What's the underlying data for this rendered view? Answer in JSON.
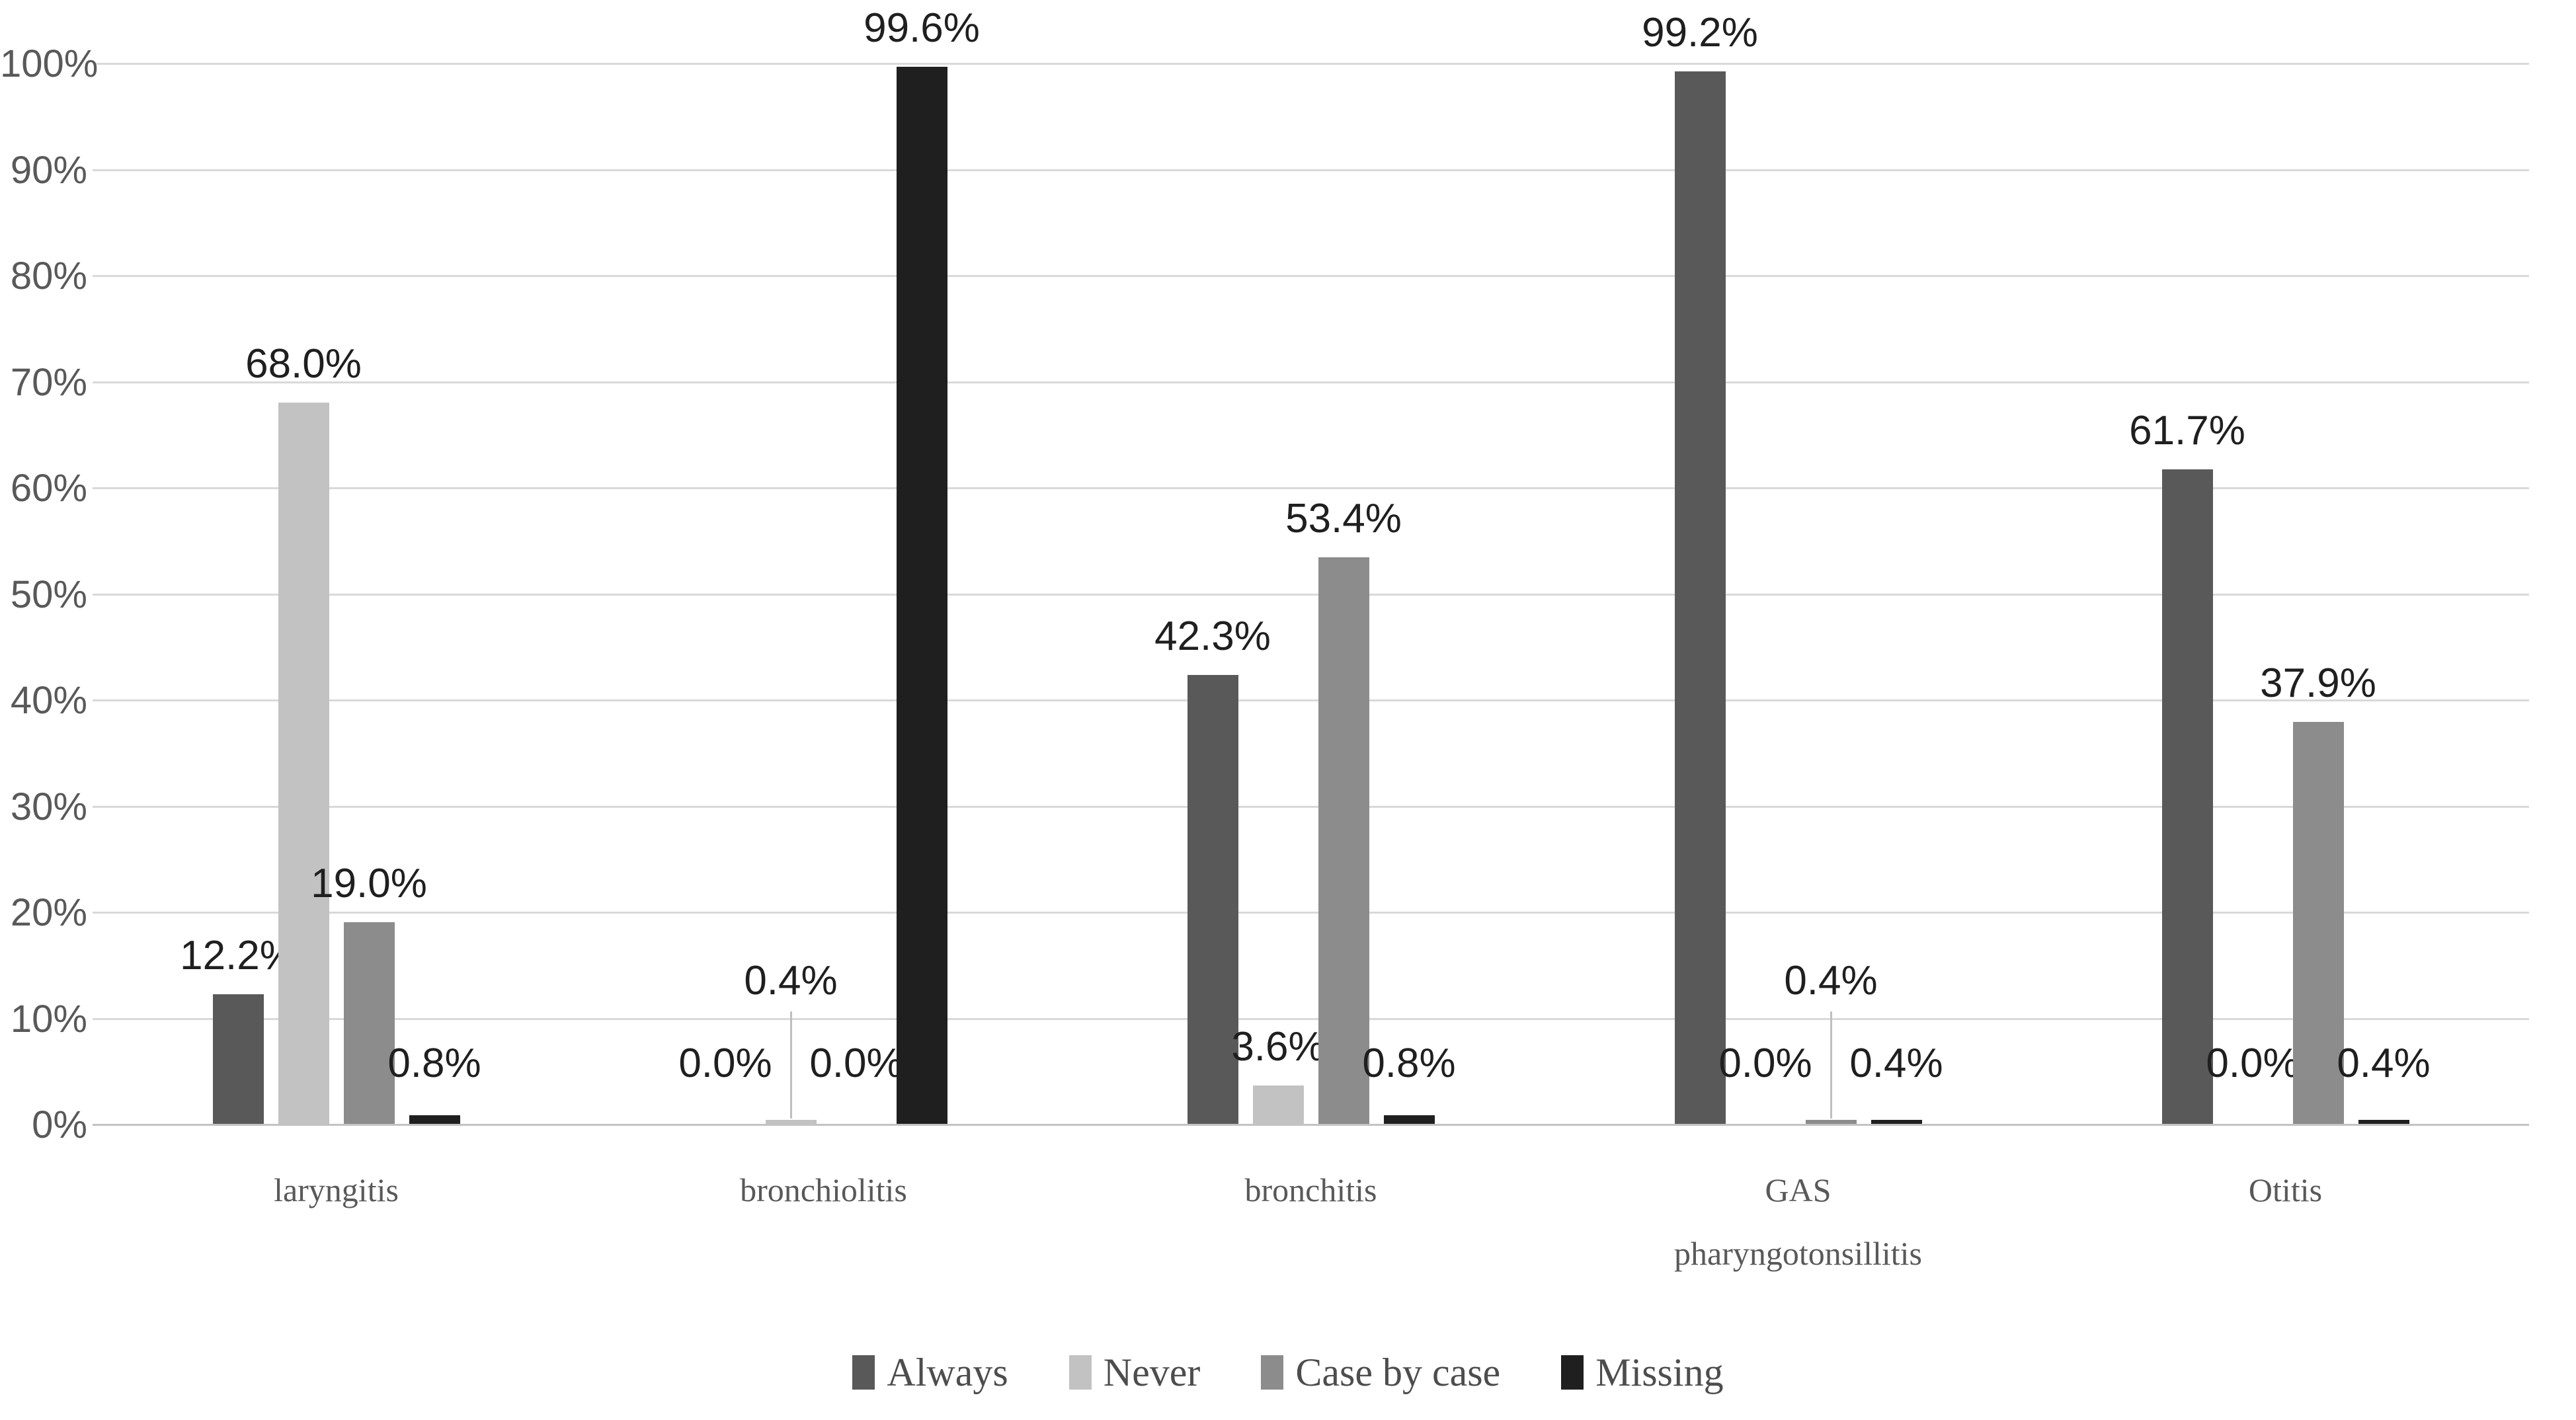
{
  "chart_data": {
    "type": "bar",
    "title": "",
    "categories": [
      "laryngitis",
      "bronchiolitis",
      "bronchitis",
      "GAS pharyngotonsillitis",
      "Otitis"
    ],
    "category_label_lines": [
      [
        "laryngitis"
      ],
      [
        "bronchiolitis"
      ],
      [
        "bronchitis"
      ],
      [
        "GAS",
        "pharyngotonsillitis"
      ],
      [
        "Otitis"
      ]
    ],
    "series": [
      {
        "name": "Always",
        "color": "#595959",
        "values": [
          12.2,
          0.0,
          42.3,
          99.2,
          61.7
        ],
        "labels": [
          "12.2%",
          "0.0%",
          "42.3%",
          "99.2%",
          "61.7%"
        ]
      },
      {
        "name": "Never",
        "color": "#C2C2C2",
        "values": [
          68.0,
          0.4,
          3.6,
          0.0,
          0.0
        ],
        "labels": [
          "68.0%",
          "0.4%",
          "3.6%",
          "0.0%",
          "0.0%"
        ]
      },
      {
        "name": "Case by case",
        "color": "#8C8C8C",
        "values": [
          19.0,
          0.0,
          53.4,
          0.4,
          37.9
        ],
        "labels": [
          "19.0%",
          "0.0%",
          "53.4%",
          "0.4%",
          "37.9%"
        ]
      },
      {
        "name": "Missing",
        "color": "#1F1F1F",
        "values": [
          0.8,
          99.6,
          0.8,
          0.4,
          0.4
        ],
        "labels": [
          "0.8%",
          "99.6%",
          "0.8%",
          "0.4%",
          "0.4%"
        ]
      }
    ],
    "y_axis": {
      "min": 0,
      "max": 100,
      "step": 10,
      "tick_labels": [
        "0%",
        "10%",
        "20%",
        "30%",
        "40%",
        "50%",
        "60%",
        "70%",
        "80%",
        "90%",
        "100%"
      ]
    },
    "legend": {
      "position": "bottom",
      "entries": [
        "Always",
        "Never",
        "Case by case",
        "Missing"
      ]
    },
    "grid": true,
    "xlabel": "",
    "ylabel": "",
    "ylim": [
      0,
      100
    ],
    "leader_lines": [
      {
        "category_index": 1,
        "series_index": 1
      },
      {
        "category_index": 3,
        "series_index": 2
      }
    ],
    "colors": {
      "gridline": "#D9D9D9",
      "axis_line": "#C3C3C3",
      "tick_label": "#595959",
      "data_label": "#1F1F1F",
      "category_label": "#595959",
      "legend_text": "#4D4D4D",
      "background": "#FFFFFF"
    }
  }
}
